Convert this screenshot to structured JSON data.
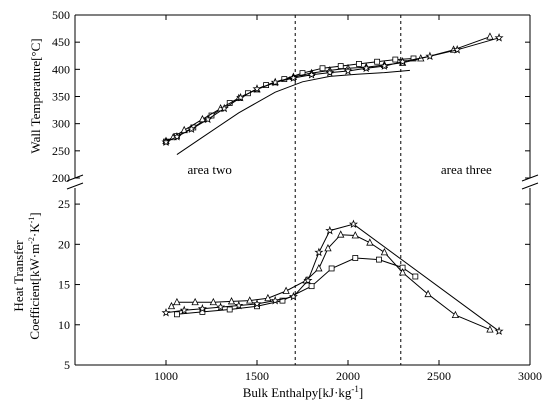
{
  "chart_data": {
    "type": "line",
    "xlabel": "Bulk Enthalpy[kJ·kg⁻¹]",
    "xlim": [
      500,
      3000
    ],
    "xticks": [
      1000,
      1500,
      2000,
      2500,
      3000
    ],
    "region_boundaries": [
      1710,
      2290
    ],
    "region_labels": [
      {
        "text": "area two",
        "x": 1240
      },
      {
        "text": "area three",
        "x": 2650
      }
    ],
    "panels": [
      {
        "id": "wall_temperature",
        "ylabel": "Wall Temperature[°C]",
        "ylim": [
          200,
          500
        ],
        "yticks": [
          200,
          250,
          300,
          350,
          400,
          450,
          500
        ],
        "series": [
          {
            "marker": "square",
            "x": [
              1000,
              1060,
              1150,
              1250,
              1350,
              1450,
              1550,
              1650,
              1750,
              1860,
              1960,
              2060,
              2160,
              2260,
              2360
            ],
            "y": [
              267,
              277,
              293,
              315,
              338,
              356,
              371,
              382,
              393,
              402,
              406,
              410,
              414,
              418,
              420
            ]
          },
          {
            "marker": "triangle",
            "x": [
              1000,
              1040,
              1100,
              1200,
              1300,
              1400,
              1500,
              1600,
              1700,
              1800,
              1900,
              2000,
              2100,
              2200,
              2300,
              2400,
              2580,
              2780
            ],
            "y": [
              268,
              275,
              288,
              308,
              328,
              347,
              363,
              376,
              386,
              393,
              398,
              402,
              404,
              408,
              412,
              420,
              436,
              460
            ]
          },
          {
            "marker": "star",
            "x": [
              1000,
              1060,
              1140,
              1230,
              1320,
              1410,
              1500,
              1600,
              1700,
              1800,
              1900,
              2000,
              2100,
              2200,
              2300,
              2450,
              2600,
              2830
            ],
            "y": [
              266,
              276,
              290,
              308,
              328,
              348,
              364,
              376,
              384,
              390,
              394,
              397,
              402,
              406,
              414,
              424,
              436,
              458
            ]
          },
          {
            "marker": "none",
            "x": [
              1060,
              1200,
              1400,
              1600,
              1750,
              1900,
              2050,
              2200,
              2340
            ],
            "y": [
              243,
              275,
              320,
              358,
              377,
              387,
              391,
              394,
              398
            ]
          }
        ]
      },
      {
        "id": "heat_transfer_coefficient",
        "ylabel": "Heat Transfer Coefficient[kW·m⁻²·K⁻¹]",
        "ylim": [
          5,
          27
        ],
        "yticks": [
          5,
          10,
          15,
          20,
          25
        ],
        "series": [
          {
            "marker": "square",
            "x": [
              1060,
              1200,
              1350,
              1500,
              1640,
              1800,
              1910,
              2040,
              2170,
              2300,
              2370
            ],
            "y": [
              11.3,
              11.6,
              11.9,
              12.3,
              13.0,
              14.8,
              17.0,
              18.3,
              18.1,
              17.1,
              16.0
            ]
          },
          {
            "marker": "triangle",
            "x": [
              1030,
              1060,
              1160,
              1260,
              1360,
              1460,
              1560,
              1660,
              1770,
              1840,
              1890,
              1960,
              2040,
              2120,
              2200,
              2300,
              2440,
              2590,
              2780
            ],
            "y": [
              12.3,
              12.8,
              12.8,
              12.8,
              12.9,
              13.0,
              13.3,
              14.2,
              15.5,
              17.0,
              19.5,
              21.2,
              21.1,
              20.2,
              19.0,
              16.5,
              13.8,
              11.2,
              9.4
            ]
          },
          {
            "marker": "star",
            "x": [
              1000,
              1100,
              1200,
              1300,
              1400,
              1500,
              1600,
              1700,
              1780,
              1840,
              1900,
              2030,
              2830
            ],
            "y": [
              11.5,
              11.8,
              12.0,
              12.2,
              12.4,
              12.6,
              13.0,
              13.5,
              15.5,
              19.0,
              21.7,
              22.5,
              9.2
            ]
          }
        ]
      }
    ]
  }
}
